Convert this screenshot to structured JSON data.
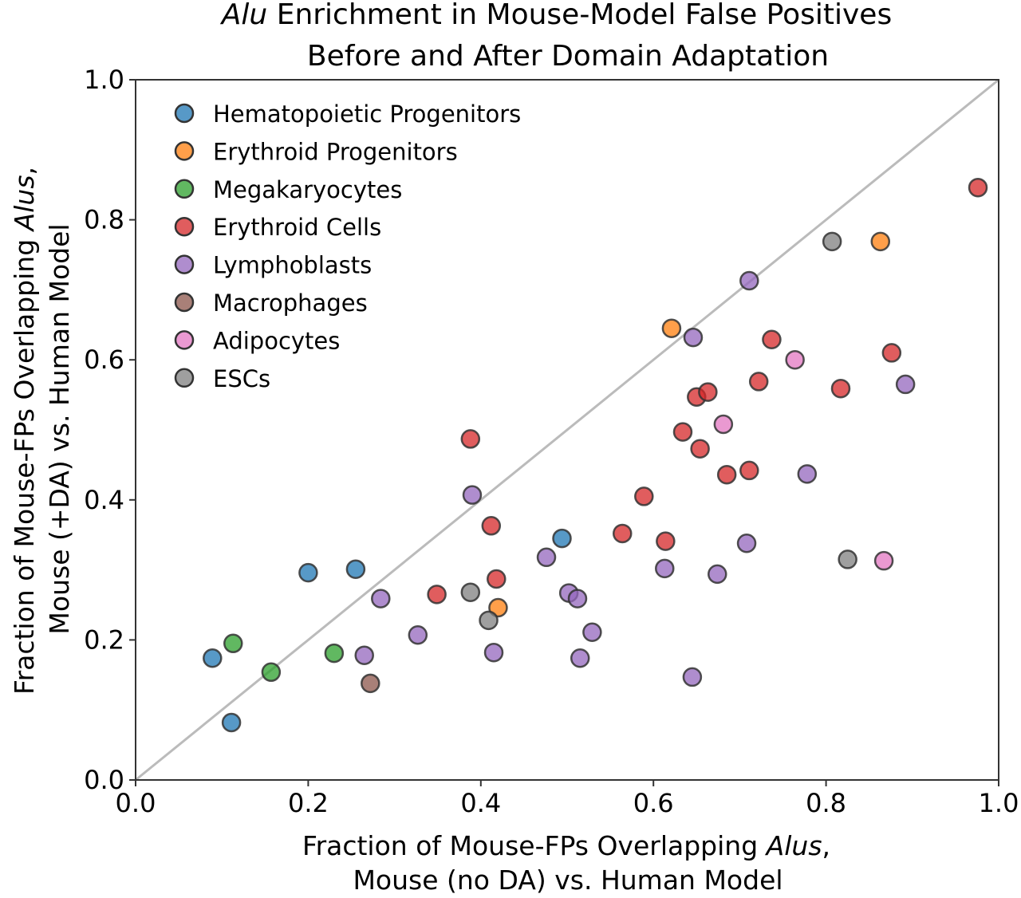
{
  "chart_data": {
    "type": "scatter",
    "title": {
      "line1_italic": "Alu",
      "line1_rest": " Enrichment in Mouse-Model False Positives",
      "line2": "Before and After Domain Adaptation"
    },
    "xlabel": {
      "line1_prefix": "Fraction of Mouse-FPs Overlapping ",
      "line1_italic": "Alus",
      "line1_suffix": ",",
      "line2": "Mouse (no DA) vs. Human Model"
    },
    "ylabel": {
      "line1_prefix": "Fraction of Mouse-FPs Overlapping ",
      "line1_italic": "Alus",
      "line1_suffix": ",",
      "line2": "Mouse (+DA) vs. Human Model"
    },
    "xlim": [
      0,
      1
    ],
    "ylim": [
      0,
      1
    ],
    "xticks": [
      "0.0",
      "0.2",
      "0.4",
      "0.6",
      "0.8",
      "1.0"
    ],
    "yticks": [
      "0.0",
      "0.2",
      "0.4",
      "0.6",
      "0.8",
      "1.0"
    ],
    "grid": false,
    "legend_position": "top-left",
    "reference_line": {
      "type": "y=x",
      "color": "#bbbbbb"
    },
    "series": [
      {
        "name": "Hematopoietic Progenitors",
        "color": "#1f77b4",
        "points": [
          [
            0.089,
            0.174
          ],
          [
            0.111,
            0.082
          ],
          [
            0.2,
            0.296
          ],
          [
            0.255,
            0.301
          ],
          [
            0.494,
            0.345
          ]
        ]
      },
      {
        "name": "Erythroid Progenitors",
        "color": "#ff7f0e",
        "points": [
          [
            0.621,
            0.645
          ],
          [
            0.863,
            0.769
          ],
          [
            0.42,
            0.246
          ]
        ]
      },
      {
        "name": "Megakaryocytes",
        "color": "#2ca02c",
        "points": [
          [
            0.113,
            0.195
          ],
          [
            0.157,
            0.154
          ],
          [
            0.23,
            0.181
          ]
        ]
      },
      {
        "name": "Erythroid Cells",
        "color": "#d62728",
        "points": [
          [
            0.976,
            0.846
          ],
          [
            0.388,
            0.487
          ],
          [
            0.412,
            0.363
          ],
          [
            0.418,
            0.287
          ],
          [
            0.349,
            0.265
          ],
          [
            0.564,
            0.352
          ],
          [
            0.589,
            0.405
          ],
          [
            0.614,
            0.341
          ],
          [
            0.634,
            0.497
          ],
          [
            0.65,
            0.547
          ],
          [
            0.663,
            0.554
          ],
          [
            0.654,
            0.473
          ],
          [
            0.685,
            0.436
          ],
          [
            0.711,
            0.442
          ],
          [
            0.722,
            0.569
          ],
          [
            0.737,
            0.629
          ],
          [
            0.817,
            0.559
          ],
          [
            0.876,
            0.61
          ]
        ]
      },
      {
        "name": "Lymphoblasts",
        "color": "#9467bd",
        "points": [
          [
            0.711,
            0.713
          ],
          [
            0.646,
            0.632
          ],
          [
            0.892,
            0.565
          ],
          [
            0.778,
            0.437
          ],
          [
            0.708,
            0.338
          ],
          [
            0.674,
            0.294
          ],
          [
            0.613,
            0.302
          ],
          [
            0.645,
            0.147
          ],
          [
            0.39,
            0.407
          ],
          [
            0.284,
            0.259
          ],
          [
            0.265,
            0.178
          ],
          [
            0.327,
            0.207
          ],
          [
            0.415,
            0.182
          ],
          [
            0.476,
            0.318
          ],
          [
            0.502,
            0.267
          ],
          [
            0.512,
            0.259
          ],
          [
            0.529,
            0.211
          ],
          [
            0.515,
            0.174
          ]
        ]
      },
      {
        "name": "Macrophages",
        "color": "#8c564b",
        "points": [
          [
            0.272,
            0.138
          ]
        ]
      },
      {
        "name": "Adipocytes",
        "color": "#e377c2",
        "points": [
          [
            0.764,
            0.6
          ],
          [
            0.681,
            0.508
          ],
          [
            0.867,
            0.313
          ]
        ]
      },
      {
        "name": "ESCs",
        "color": "#7f7f7f",
        "points": [
          [
            0.807,
            0.769
          ],
          [
            0.825,
            0.315
          ],
          [
            0.388,
            0.268
          ],
          [
            0.409,
            0.228
          ]
        ]
      }
    ]
  }
}
